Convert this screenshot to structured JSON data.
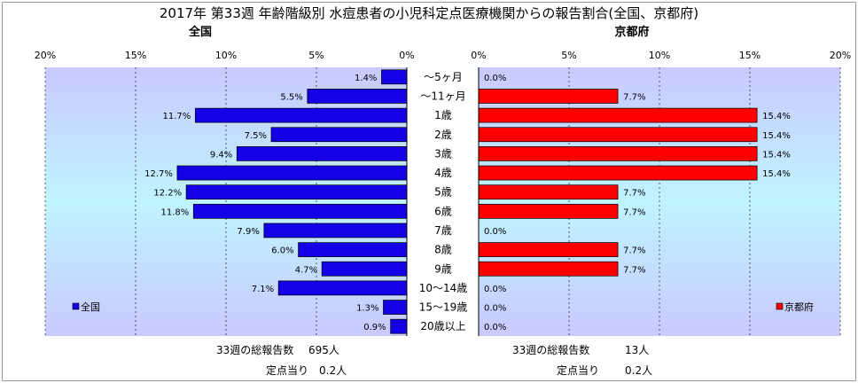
{
  "title": "2017年 第33週 年齢階級別 水痘患者の小児科定点医療機関からの報告割合(全国、京都府)",
  "colors": {
    "zenkoku": "#1400e6",
    "kyoto": "#ff0000",
    "plot_bg_top": "#c9c9ff",
    "plot_bg_mid": "#bff4ff"
  },
  "chart_data": [
    {
      "type": "bar",
      "orientation": "horizontal",
      "direction": "right-to-left",
      "subtitle": "全国",
      "categories": [
        "～5ヶ月",
        "～11ヶ月",
        "1歳",
        "2歳",
        "3歳",
        "4歳",
        "5歳",
        "6歳",
        "7歳",
        "8歳",
        "9歳",
        "10～14歳",
        "15～19歳",
        "20歳以上"
      ],
      "series": [
        {
          "name": "全国",
          "values": [
            1.4,
            5.5,
            11.7,
            7.5,
            9.4,
            12.7,
            12.2,
            11.8,
            7.9,
            6.0,
            4.7,
            7.1,
            1.3,
            0.9
          ]
        }
      ],
      "data_labels": [
        "1.4%",
        "5.5%",
        "11.7%",
        "7.5%",
        "9.4%",
        "12.7%",
        "12.2%",
        "11.8%",
        "7.9%",
        "6.0%",
        "4.7%",
        "7.1%",
        "1.3%",
        "0.9%"
      ],
      "xlim": [
        0,
        20
      ],
      "ticks": [
        "20%",
        "15%",
        "10%",
        "5%",
        "0%"
      ],
      "grid": true,
      "legend_position": "bottom-left"
    },
    {
      "type": "bar",
      "orientation": "horizontal",
      "direction": "left-to-right",
      "subtitle": "京都府",
      "categories": [
        "～5ヶ月",
        "～11ヶ月",
        "1歳",
        "2歳",
        "3歳",
        "4歳",
        "5歳",
        "6歳",
        "7歳",
        "8歳",
        "9歳",
        "10～14歳",
        "15～19歳",
        "20歳以上"
      ],
      "series": [
        {
          "name": "京都府",
          "values": [
            0.0,
            7.7,
            15.4,
            15.4,
            15.4,
            15.4,
            7.7,
            7.7,
            0.0,
            7.7,
            7.7,
            0.0,
            0.0,
            0.0
          ]
        }
      ],
      "data_labels": [
        "0.0%",
        "7.7%",
        "15.4%",
        "15.4%",
        "15.4%",
        "15.4%",
        "7.7%",
        "7.7%",
        "0.0%",
        "7.7%",
        "7.7%",
        "0.0%",
        "0.0%",
        "0.0%"
      ],
      "xlim": [
        0,
        20
      ],
      "ticks": [
        "0%",
        "5%",
        "10%",
        "15%",
        "20%"
      ],
      "grid": true,
      "legend_position": "bottom-right"
    }
  ],
  "footer": {
    "zenkoku": {
      "total_label": "33週の総報告数",
      "total_value": "695人",
      "per_label": "定点当り",
      "per_value": "0.2人"
    },
    "kyoto": {
      "total_label": "33週の総報告数",
      "total_value": "13人",
      "per_label": "定点当り",
      "per_value": "0.2人"
    }
  }
}
